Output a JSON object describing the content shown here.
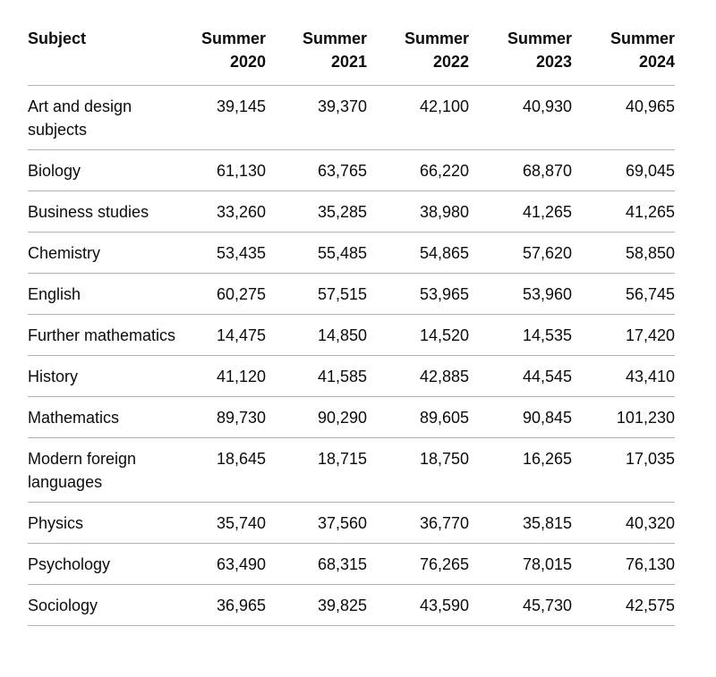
{
  "table": {
    "headers": [
      {
        "line1": "Subject",
        "line2": ""
      },
      {
        "line1": "Summer",
        "line2": "2020"
      },
      {
        "line1": "Summer",
        "line2": "2021"
      },
      {
        "line1": "Summer",
        "line2": "2022"
      },
      {
        "line1": "Summer",
        "line2": "2023"
      },
      {
        "line1": "Summer",
        "line2": "2024"
      }
    ],
    "rows": [
      {
        "subject": "Art and design subjects",
        "values": [
          "39,145",
          "39,370",
          "42,100",
          "40,930",
          "40,965"
        ]
      },
      {
        "subject": "Biology",
        "values": [
          "61,130",
          "63,765",
          "66,220",
          "68,870",
          "69,045"
        ]
      },
      {
        "subject": "Business studies",
        "values": [
          "33,260",
          "35,285",
          "38,980",
          "41,265",
          "41,265"
        ]
      },
      {
        "subject": "Chemistry",
        "values": [
          "53,435",
          "55,485",
          "54,865",
          "57,620",
          "58,850"
        ]
      },
      {
        "subject": "English",
        "values": [
          "60,275",
          "57,515",
          "53,965",
          "53,960",
          "56,745"
        ]
      },
      {
        "subject": "Further mathematics",
        "values": [
          "14,475",
          "14,850",
          "14,520",
          "14,535",
          "17,420"
        ]
      },
      {
        "subject": "History",
        "values": [
          "41,120",
          "41,585",
          "42,885",
          "44,545",
          "43,410"
        ]
      },
      {
        "subject": "Mathematics",
        "values": [
          "89,730",
          "90,290",
          "89,605",
          "90,845",
          "101,230"
        ]
      },
      {
        "subject": "Modern foreign languages",
        "values": [
          "18,645",
          "18,715",
          "18,750",
          "16,265",
          "17,035"
        ]
      },
      {
        "subject": "Physics",
        "values": [
          "35,740",
          "37,560",
          "36,770",
          "35,815",
          "40,320"
        ]
      },
      {
        "subject": "Psychology",
        "values": [
          "63,490",
          "68,315",
          "76,265",
          "78,015",
          "76,130"
        ]
      },
      {
        "subject": "Sociology",
        "values": [
          "36,965",
          "39,825",
          "43,590",
          "45,730",
          "42,575"
        ]
      }
    ]
  }
}
